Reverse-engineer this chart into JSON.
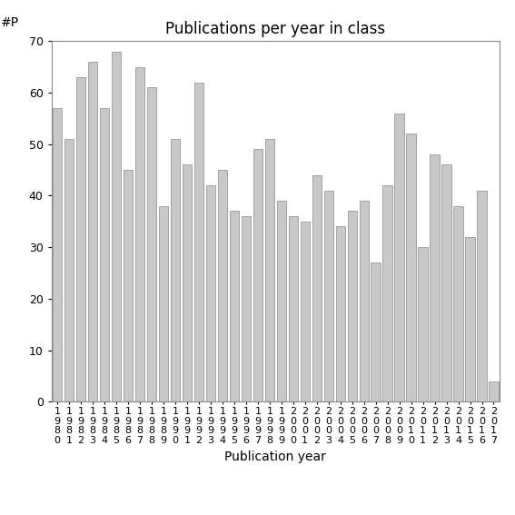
{
  "title": "Publications per year in class",
  "xlabel": "Publication year",
  "ylabel_annotation": "#P",
  "years": [
    "1980",
    "1981",
    "1982",
    "1983",
    "1984",
    "1985",
    "1986",
    "1987",
    "1988",
    "1989",
    "1990",
    "1991",
    "1992",
    "1993",
    "1994",
    "1995",
    "1996",
    "1997",
    "1998",
    "1999",
    "2000",
    "2001",
    "2002",
    "2003",
    "2004",
    "2005",
    "2006",
    "2007",
    "2008",
    "2009",
    "2010",
    "2011",
    "2012",
    "2013",
    "2014",
    "2015",
    "2016",
    "2017"
  ],
  "values": [
    57,
    51,
    63,
    66,
    57,
    68,
    45,
    65,
    61,
    38,
    51,
    46,
    62,
    42,
    45,
    37,
    36,
    49,
    51,
    39,
    36,
    35,
    44,
    41,
    34,
    37,
    39,
    27,
    42,
    56,
    52,
    30,
    48,
    46,
    38,
    32,
    41,
    4
  ],
  "bar_color": "#c8c8c8",
  "bar_edgecolor": "#888888",
  "background_color": "#ffffff",
  "ylim": [
    0,
    70
  ],
  "yticks": [
    0,
    10,
    20,
    30,
    40,
    50,
    60,
    70
  ],
  "title_fontsize": 12,
  "axis_label_fontsize": 10,
  "tick_fontsize": 9,
  "annotation_fontsize": 10
}
